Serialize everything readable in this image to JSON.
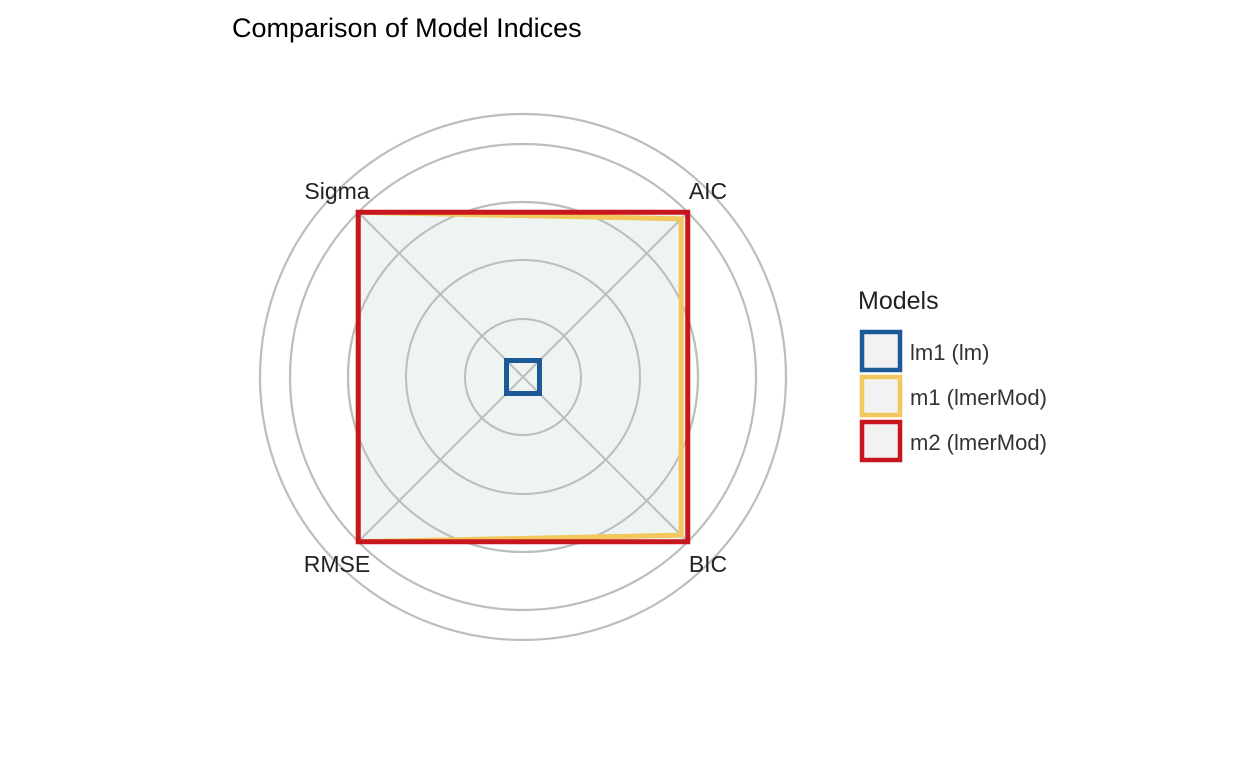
{
  "chart_data": {
    "type": "radar",
    "title": "Comparison of Model Indices",
    "axes": [
      "AIC",
      "BIC",
      "RMSE",
      "Sigma"
    ],
    "rlim": [
      0,
      1
    ],
    "grid": true,
    "legend_title": "Models",
    "legend_position": "right",
    "series": [
      {
        "name": "lm1 (lm)",
        "color": "#1b5a96",
        "values": [
          0.1,
          0.1,
          0.1,
          0.1
        ]
      },
      {
        "name": "m1 (lmerMod)",
        "color": "#f2c75c",
        "values": [
          0.96,
          0.96,
          1.0,
          1.0
        ]
      },
      {
        "name": "m2 (lmerMod)",
        "color": "#c8161e",
        "values": [
          1.0,
          1.0,
          1.0,
          1.0
        ]
      }
    ],
    "fill_color": "#eaf2f0",
    "grid_color": "#bdbdbd"
  }
}
